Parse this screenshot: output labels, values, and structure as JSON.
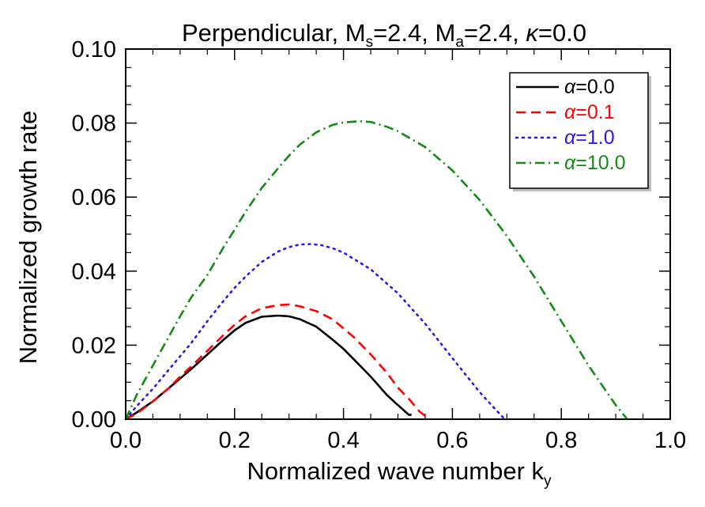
{
  "chart_data": {
    "type": "line",
    "title_parts": {
      "prefix": "Perpendicular,  M",
      "ms_sub": "s",
      "ms_val": "=2.4, M",
      "ma_sub": "a",
      "ma_val": "=2.4, ",
      "kappa_sym": "κ",
      "kappa_val": "=0.0"
    },
    "xlabel_parts": {
      "main": "Normalized wave number k",
      "sub": "y"
    },
    "ylabel": "Normalized growth rate",
    "xlim": [
      0.0,
      1.0
    ],
    "ylim": [
      0.0,
      0.1
    ],
    "x_ticks": [
      0.0,
      0.2,
      0.4,
      0.6,
      0.8,
      1.0
    ],
    "x_tick_labels": [
      "0.0",
      "0.2",
      "0.4",
      "0.6",
      "0.8",
      "1.0"
    ],
    "y_ticks": [
      0.0,
      0.02,
      0.04,
      0.06,
      0.08,
      0.1
    ],
    "y_tick_labels": [
      "0.00",
      "0.02",
      "0.04",
      "0.06",
      "0.08",
      "0.10"
    ],
    "grid": false,
    "legend_position": "top-right",
    "series": [
      {
        "name": "α=0.0",
        "legend_symbol": "α",
        "legend_value": "=0.0",
        "color": "#000000",
        "dash": "solid",
        "x": [
          0.0,
          0.02,
          0.05,
          0.08,
          0.1,
          0.12,
          0.15,
          0.18,
          0.2,
          0.22,
          0.25,
          0.28,
          0.3,
          0.32,
          0.35,
          0.38,
          0.4,
          0.42,
          0.45,
          0.48,
          0.5,
          0.52,
          0.525
        ],
        "y": [
          0.0,
          0.0018,
          0.0048,
          0.0085,
          0.011,
          0.0135,
          0.0175,
          0.0215,
          0.024,
          0.026,
          0.0277,
          0.028,
          0.0278,
          0.027,
          0.025,
          0.0215,
          0.019,
          0.016,
          0.0115,
          0.0065,
          0.0038,
          0.0012,
          0.0012
        ]
      },
      {
        "name": "α=0.1",
        "legend_symbol": "α",
        "legend_value": "=0.1",
        "color": "#ff0000",
        "dash": "dashed",
        "x": [
          0.0,
          0.02,
          0.05,
          0.08,
          0.1,
          0.12,
          0.15,
          0.18,
          0.2,
          0.22,
          0.25,
          0.28,
          0.3,
          0.32,
          0.35,
          0.38,
          0.4,
          0.42,
          0.45,
          0.48,
          0.5,
          0.52,
          0.54,
          0.555
        ],
        "y": [
          0.0,
          0.0015,
          0.0048,
          0.0085,
          0.0115,
          0.0142,
          0.0185,
          0.0228,
          0.0255,
          0.0278,
          0.03,
          0.0308,
          0.031,
          0.0305,
          0.0292,
          0.027,
          0.0245,
          0.022,
          0.0175,
          0.0125,
          0.0085,
          0.0055,
          0.002,
          0.0003
        ]
      },
      {
        "name": "α=1.0",
        "legend_symbol": "α",
        "legend_value": "=1.0",
        "color": "#3a10ee",
        "dash": "dotted",
        "x": [
          0.0,
          0.02,
          0.05,
          0.08,
          0.1,
          0.12,
          0.15,
          0.18,
          0.2,
          0.22,
          0.25,
          0.28,
          0.3,
          0.32,
          0.34,
          0.36,
          0.38,
          0.4,
          0.45,
          0.5,
          0.55,
          0.6,
          0.65,
          0.68,
          0.695
        ],
        "y": [
          0.0,
          0.0035,
          0.0082,
          0.0135,
          0.017,
          0.0205,
          0.0265,
          0.032,
          0.0355,
          0.0385,
          0.0425,
          0.0453,
          0.0465,
          0.0472,
          0.0473,
          0.047,
          0.0462,
          0.045,
          0.0405,
          0.034,
          0.0258,
          0.0165,
          0.0073,
          0.0025,
          0.0002
        ]
      },
      {
        "name": "α=10.0",
        "legend_symbol": "α",
        "legend_value": "=10.0",
        "color": "#138b13",
        "dash": "dashdot",
        "x": [
          0.0,
          0.02,
          0.05,
          0.08,
          0.1,
          0.12,
          0.15,
          0.18,
          0.2,
          0.22,
          0.25,
          0.28,
          0.3,
          0.32,
          0.35,
          0.38,
          0.4,
          0.43,
          0.45,
          0.48,
          0.5,
          0.55,
          0.6,
          0.65,
          0.7,
          0.75,
          0.8,
          0.85,
          0.9,
          0.92
        ],
        "y": [
          0.0,
          0.0065,
          0.0145,
          0.0225,
          0.0278,
          0.0328,
          0.039,
          0.0465,
          0.0512,
          0.056,
          0.0625,
          0.0678,
          0.0712,
          0.0742,
          0.0775,
          0.0795,
          0.0802,
          0.0805,
          0.0803,
          0.079,
          0.0778,
          0.0735,
          0.0672,
          0.0592,
          0.0495,
          0.0385,
          0.0265,
          0.0145,
          0.0038,
          0.0002
        ]
      }
    ]
  }
}
